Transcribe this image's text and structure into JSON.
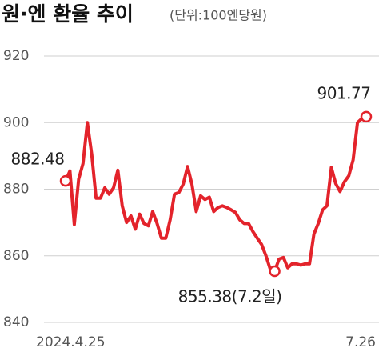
{
  "chart_data": {
    "type": "line",
    "title": "원·엔 환율 추이",
    "subtitle": "(단위:100엔당원)",
    "categories": [
      "2024.4.25",
      null,
      null,
      null,
      null,
      null,
      null,
      null,
      null,
      null,
      null,
      null,
      null,
      null,
      null,
      null,
      null,
      null,
      null,
      null,
      null,
      null,
      null,
      null,
      null,
      null,
      null,
      null,
      null,
      null,
      null,
      null,
      null,
      null,
      null,
      null,
      null,
      null,
      null,
      null,
      null,
      null,
      null,
      null,
      null,
      null,
      null,
      null,
      null,
      null,
      null,
      null,
      null,
      null,
      null,
      null,
      null,
      null,
      null,
      null,
      null,
      null,
      null,
      null,
      null,
      null,
      null,
      null,
      null,
      "7.26"
    ],
    "values": [
      882.48,
      885.5,
      869.4,
      883,
      887.7,
      900,
      890.5,
      877.3,
      877.3,
      880.4,
      878.5,
      880.4,
      885.7,
      875,
      870,
      872,
      868,
      872.5,
      869.7,
      869,
      873.3,
      869.7,
      865.3,
      865.3,
      870.8,
      878.5,
      879,
      881.5,
      886.8,
      881.5,
      873.3,
      878,
      876.9,
      877.6,
      873.3,
      874.5,
      875,
      874.5,
      873.8,
      873,
      870.8,
      869.7,
      869.7,
      867.3,
      865.3,
      863.4,
      860,
      855.9,
      855.38,
      859,
      859.5,
      856.4,
      857.6,
      857.6,
      857.2,
      857.6,
      857.6,
      866.5,
      869.7,
      873.8,
      875,
      886.5,
      881.7,
      879.3,
      882.2,
      884,
      888.8,
      900,
      901.2,
      901.77
    ],
    "value_labels": [
      "882.48",
      null,
      null,
      null,
      null,
      null,
      null,
      null,
      null,
      null,
      null,
      null,
      null,
      null,
      null,
      null,
      null,
      null,
      null,
      null,
      null,
      null,
      null,
      null,
      null,
      null,
      null,
      null,
      null,
      null,
      null,
      null,
      null,
      null,
      null,
      null,
      null,
      null,
      null,
      null,
      null,
      null,
      null,
      null,
      null,
      null,
      null,
      null,
      "855.38(7.2일)",
      null,
      null,
      null,
      null,
      null,
      null,
      null,
      null,
      null,
      null,
      null,
      null,
      null,
      null,
      null,
      null,
      null,
      null,
      null,
      null,
      "901.77"
    ],
    "color": "#e3232b",
    "ylim": [
      840,
      920
    ],
    "yticks": [
      840,
      860,
      880,
      900,
      920
    ],
    "grid": true
  }
}
